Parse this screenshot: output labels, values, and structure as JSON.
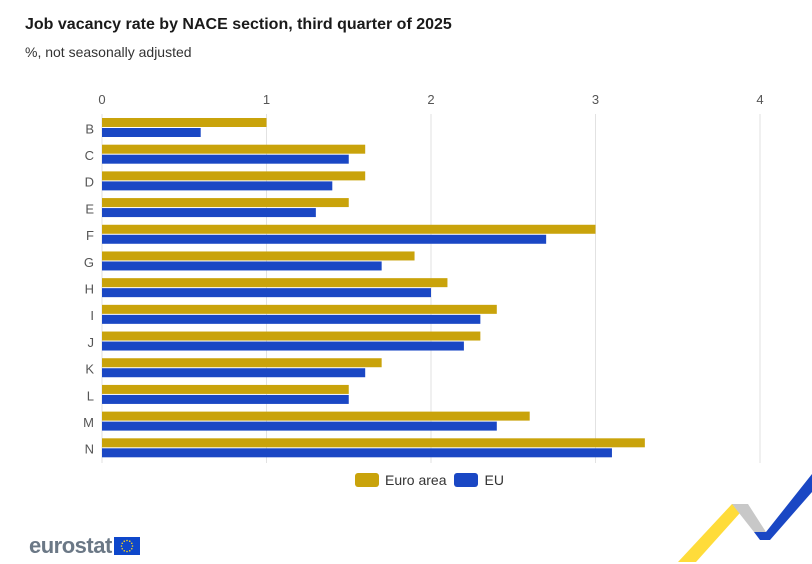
{
  "header": {
    "title": "Job vacancy rate by NACE section, third quarter of 2025",
    "subtitle": "%, not seasonally adjusted"
  },
  "legend": {
    "euro_area_label": "Euro area",
    "eu_label": "EU"
  },
  "logo": {
    "text": "eurostat"
  },
  "colors": {
    "euro_area": "#c9a30b",
    "eu": "#1a47c4",
    "grid": "#e2e2e2",
    "logo_flag": "#0e47cb",
    "logo_star": "#ffd617"
  },
  "chart_data": {
    "type": "bar",
    "orientation": "horizontal",
    "title": "Job vacancy rate by NACE section, third quarter of 2025",
    "subtitle": "%, not seasonally adjusted",
    "xlabel": "",
    "ylabel": "",
    "xlim": [
      0,
      4
    ],
    "xticks": [
      0,
      1,
      2,
      3,
      4
    ],
    "grid": true,
    "legend_position": "bottom",
    "categories": [
      "B",
      "C",
      "D",
      "E",
      "F",
      "G",
      "H",
      "I",
      "J",
      "K",
      "L",
      "M",
      "N"
    ],
    "series": [
      {
        "name": "Euro area",
        "values": [
          1.0,
          1.6,
          1.6,
          1.5,
          3.0,
          1.9,
          2.1,
          2.4,
          2.3,
          1.7,
          1.5,
          2.6,
          3.3
        ]
      },
      {
        "name": "EU",
        "values": [
          0.6,
          1.5,
          1.4,
          1.3,
          2.7,
          1.7,
          2.0,
          2.3,
          2.2,
          1.6,
          1.5,
          2.4,
          3.1
        ]
      }
    ]
  }
}
